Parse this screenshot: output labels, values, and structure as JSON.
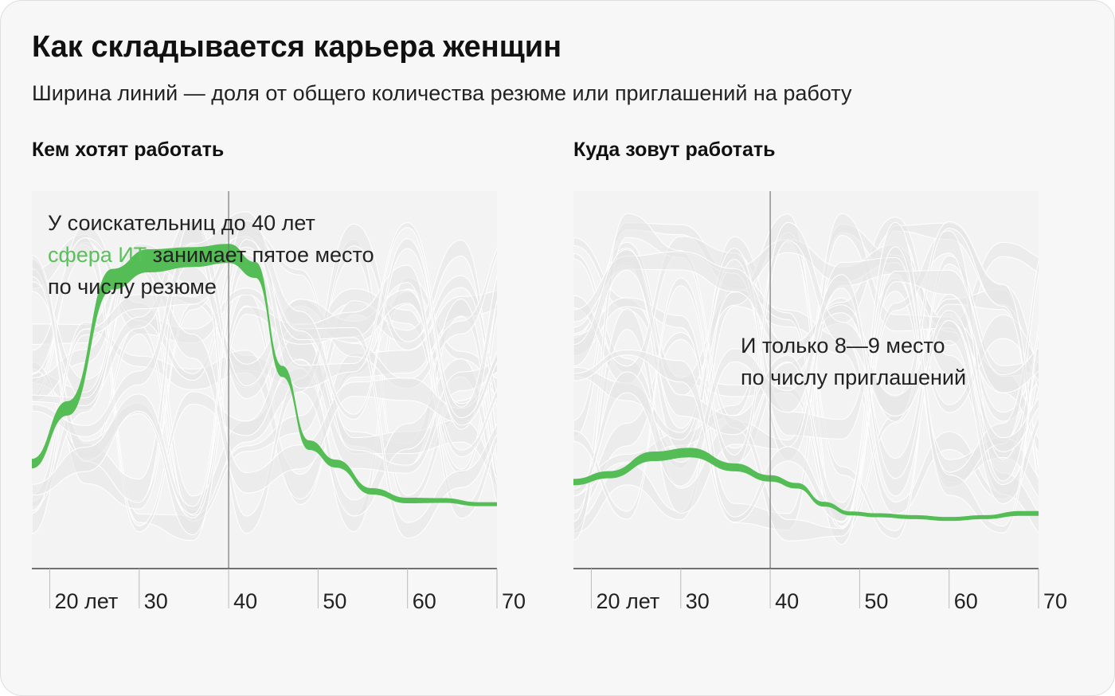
{
  "title": "Как складывается карьера женщин",
  "subtitle": "Ширина линий — доля от общего количества резюме или приглашений на работу",
  "accent_color": "#55bd55",
  "background_flow_color": "#e6e6e6",
  "chart_data": [
    {
      "type": "area",
      "title": "Кем хотят работать",
      "x_ticks": [
        "20 лет",
        "30",
        "40",
        "50",
        "60",
        "70"
      ],
      "xlim": [
        18,
        70
      ],
      "marker_x": 40,
      "highlight_series": {
        "name": "сфера ИТ",
        "x": [
          18,
          22,
          27,
          31,
          36,
          40,
          43,
          46,
          49,
          52,
          56,
          60,
          64,
          68,
          70
        ],
        "rank": [
          14,
          11,
          4,
          3,
          2.8,
          2.6,
          3.5,
          9,
          13,
          14,
          15.5,
          16,
          16,
          16.2,
          16.2
        ],
        "width": [
          12,
          18,
          26,
          29,
          25,
          24,
          20,
          14,
          12,
          10,
          8,
          7,
          6,
          5,
          5
        ]
      },
      "annotation": {
        "line1": "У соискательниц до 40 лет",
        "highlight": "сфера ИТ",
        "line2_rest": " занимает пятое место",
        "line3": "по числу резюме"
      }
    },
    {
      "type": "area",
      "title": "Куда зовут работать",
      "x_ticks": [
        "20 лет",
        "30",
        "40",
        "50",
        "60",
        "70"
      ],
      "xlim": [
        18,
        70
      ],
      "marker_x": 40,
      "highlight_series": {
        "name": "сфера ИТ",
        "x": [
          18,
          22,
          27,
          31,
          36,
          40,
          43,
          46,
          49,
          52,
          56,
          60,
          64,
          68,
          70
        ],
        "rank": [
          15,
          14.6,
          13.6,
          13.4,
          14.2,
          14.8,
          15.2,
          16.2,
          16.7,
          16.8,
          16.9,
          17,
          16.9,
          16.7,
          16.7
        ],
        "width": [
          8,
          9,
          12,
          12,
          10,
          8,
          7,
          6,
          5,
          5,
          5,
          5,
          5,
          6,
          6
        ]
      },
      "annotation": {
        "line1": "И только 8—9 место",
        "line2": "по числу приглашений"
      }
    }
  ]
}
